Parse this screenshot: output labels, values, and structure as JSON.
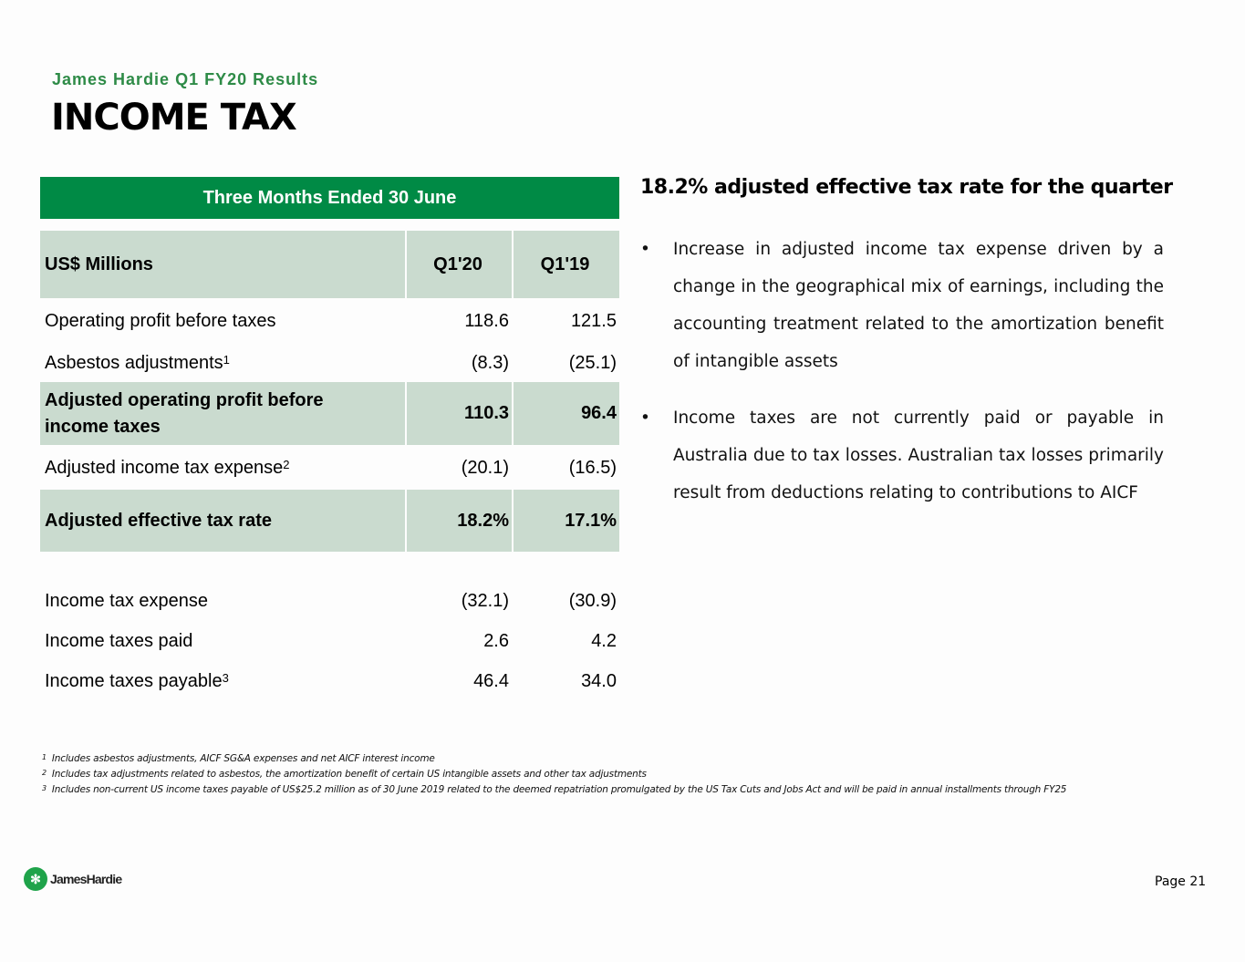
{
  "header": {
    "subtitle": "James Hardie Q1 FY20 Results",
    "title": "INCOME TAX"
  },
  "table": {
    "period_header": "Three Months Ended 30 June",
    "columns": {
      "label": "US$ Millions",
      "c1": "Q1'20",
      "c2": "Q1'19"
    },
    "rows": [
      {
        "label": "Operating profit before taxes",
        "sup": "",
        "c1": "118.6",
        "c2": "121.5"
      },
      {
        "label": "Asbestos adjustments",
        "sup": "1",
        "c1": "(8.3)",
        "c2": "(25.1)"
      },
      {
        "label": "Adjusted operating profit before income taxes",
        "sup": "",
        "c1": "110.3",
        "c2": "96.4"
      },
      {
        "label": "Adjusted income tax expense",
        "sup": "2",
        "c1": "(20.1)",
        "c2": "(16.5)"
      },
      {
        "label": "Adjusted effective tax rate",
        "sup": "",
        "c1": "18.2%",
        "c2": "17.1%"
      },
      {
        "label": "Income tax expense",
        "sup": "",
        "c1": "(32.1)",
        "c2": "(30.9)"
      },
      {
        "label": "Income taxes paid",
        "sup": "",
        "c1": "2.6",
        "c2": "4.2"
      },
      {
        "label": "Income taxes payable",
        "sup": "3",
        "c1": "46.4",
        "c2": "34.0"
      }
    ]
  },
  "commentary": {
    "heading": "18.2% adjusted effective tax rate for the quarter",
    "bullet_char": "•",
    "bullets": [
      "Increase in adjusted income tax expense driven by a change in the geographical mix of earnings, including the accounting treatment related to the amortization benefit of intangible assets",
      "Income taxes are not currently paid or payable in Australia due to tax losses. Australian tax losses primarily result from deductions relating to contributions to AICF"
    ]
  },
  "footnotes": [
    {
      "n": "1",
      "text": "Includes asbestos adjustments, AICF SG&A expenses and net AICF interest income"
    },
    {
      "n": "2",
      "text": "Includes tax adjustments related to asbestos, the amortization benefit of certain US intangible assets and other tax adjustments"
    },
    {
      "n": "3",
      "text": "Includes non-current US income taxes payable of US$25.2 million as of 30 June 2019 related to the deemed repatriation promulgated by the US Tax Cuts and Jobs Act and will be paid in annual installments through FY25"
    }
  ],
  "footer": {
    "logo_text": "JamesHardie",
    "page": "Page 21"
  },
  "colors": {
    "brand_green": "#008a45",
    "shade": "#cadbcf"
  }
}
